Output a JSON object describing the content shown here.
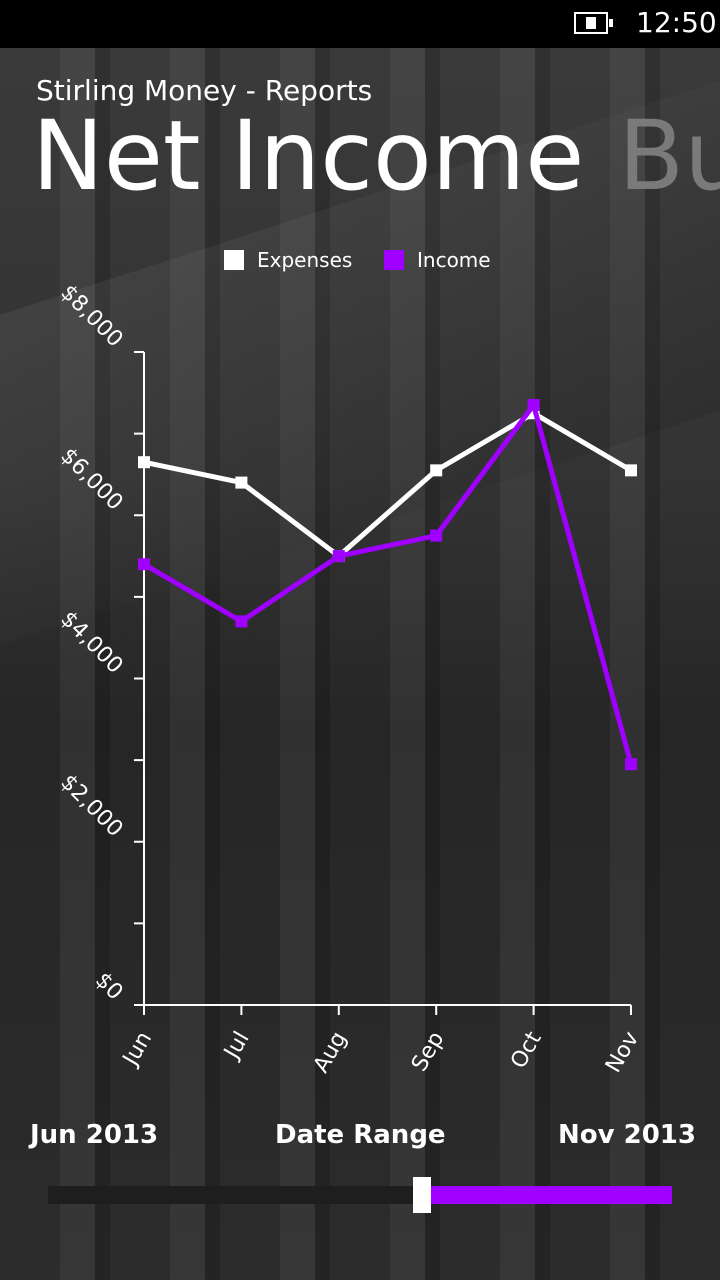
{
  "status": {
    "time": "12:50",
    "battery_icon": "battery-charging-icon"
  },
  "app": {
    "title": "Stirling Money - Reports"
  },
  "pivot": {
    "current": "Net Income",
    "next": "Bu"
  },
  "colors": {
    "income": "#a000ff",
    "expenses": "#ffffff",
    "accent": "#a000ff"
  },
  "chart_data": {
    "type": "line",
    "categories": [
      "Jun",
      "Jul",
      "Aug",
      "Sep",
      "Oct",
      "Nov"
    ],
    "series": [
      {
        "name": "Expenses",
        "values": [
          6650,
          6400,
          5500,
          6550,
          7250,
          6550
        ]
      },
      {
        "name": "Income",
        "values": [
          5400,
          4700,
          5500,
          5750,
          7350,
          2950
        ]
      }
    ],
    "ylim": [
      0,
      8000
    ],
    "yticks": [
      0,
      2000,
      4000,
      6000,
      8000
    ],
    "yticks_minor": [
      1000,
      3000,
      5000,
      7000
    ],
    "ytick_labels": [
      "$0",
      "$2,000",
      "$4,000",
      "$6,000",
      "$8,000"
    ],
    "legend": {
      "position": "top",
      "entries": [
        "Expenses",
        "Income"
      ]
    },
    "grid": false
  },
  "date_range": {
    "start_label": "Jun 2013",
    "title": "Date Range",
    "end_label": "Nov 2013",
    "thumb_fraction": 0.6
  }
}
